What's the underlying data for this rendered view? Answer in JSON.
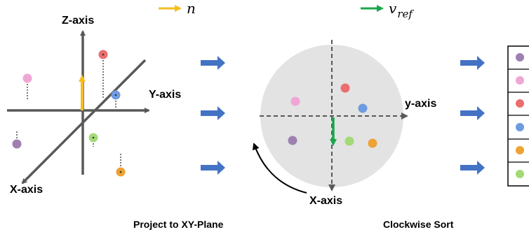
{
  "legend": {
    "normal": {
      "symbol": "n",
      "color": "#f5bd1f"
    },
    "reference": {
      "symbol": "v",
      "subscript": "ref",
      "color": "#1aa64b"
    }
  },
  "panel_3d": {
    "z_label": "Z-axis",
    "y_label": "Y-axis",
    "x_label": "X-axis",
    "axis_color": "#595959"
  },
  "panel_plane": {
    "y_label": "y-axis",
    "x_label": "X-axis",
    "disk_color": "#e3e3e3"
  },
  "captions": {
    "project": "Project to XY-Plane",
    "sort": "Clockwise Sort"
  },
  "colors": {
    "arrow": "#4472c4",
    "purple": "#9e80b0",
    "pink": "#f0a6d4",
    "red": "#ec6d6d",
    "blue": "#6f9be0",
    "orange": "#eda232",
    "green": "#a3d977"
  },
  "sorted_order": [
    "purple",
    "pink",
    "red",
    "blue",
    "orange",
    "green"
  ]
}
